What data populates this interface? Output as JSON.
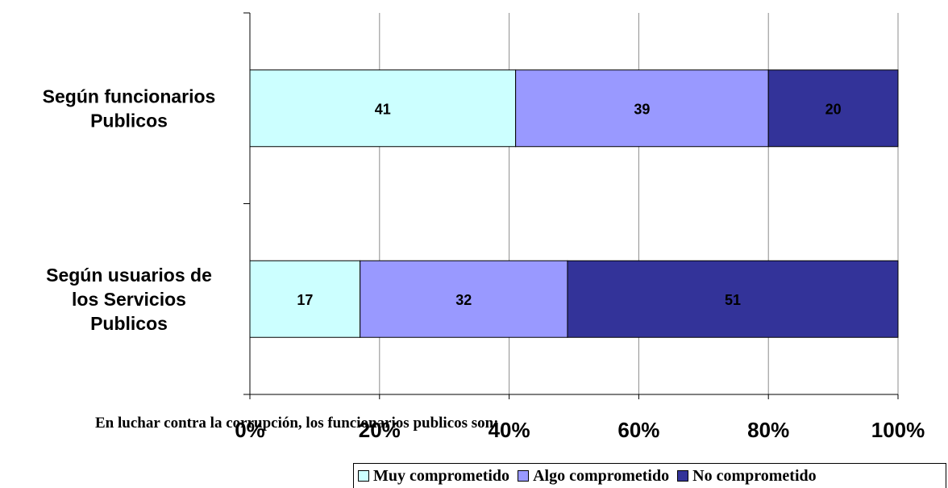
{
  "chart_data": {
    "type": "bar",
    "orientation": "horizontal",
    "stacked": true,
    "categories": [
      "Según funcionarios Publicos",
      "Según usuarios de los Servicios Publicos"
    ],
    "category_lines": [
      [
        "Según funcionarios",
        "Publicos"
      ],
      [
        "Según usuarios de",
        "los Servicios",
        "Publicos"
      ]
    ],
    "series": [
      {
        "name": "Muy comprometido",
        "values": [
          41,
          17
        ],
        "color": "#CCFFFF"
      },
      {
        "name": "Algo comprometido",
        "values": [
          39,
          32
        ],
        "color": "#9999FF"
      },
      {
        "name": "No comprometido",
        "values": [
          20,
          51
        ],
        "color": "#333399"
      }
    ],
    "data_labels": [
      [
        "41",
        "17"
      ],
      [
        "39",
        "32"
      ],
      [
        "20",
        "51"
      ]
    ],
    "xlim": [
      0,
      100
    ],
    "x_ticks": [
      "0%",
      "20%",
      "40%",
      "60%",
      "80%",
      "100%"
    ],
    "grid": "vertical",
    "xlabel": "En luchar contra la corrupción, los funcionarios publicos son:",
    "legend": {
      "position": "bottom-right",
      "entries": [
        "Muy comprometido",
        "Algo comprometido",
        "No comprometido"
      ]
    }
  }
}
